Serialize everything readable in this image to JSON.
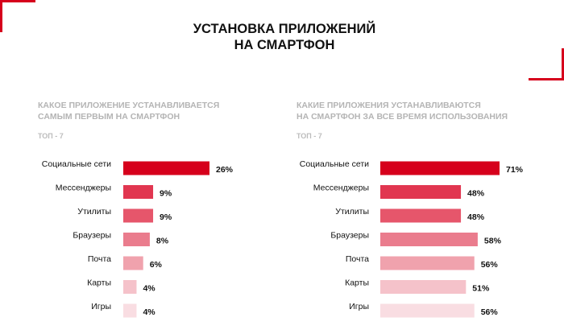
{
  "title": {
    "line1": "УСТАНОВКА ПРИЛОЖЕНИЙ",
    "line2": "НА СМАРТФОН"
  },
  "colors": {
    "accent": "#d6001c",
    "shades": [
      "#d6001c",
      "#e13650",
      "#e6566b",
      "#ea7c8d",
      "#f0a2ad",
      "#f5c2ca",
      "#f9dde2"
    ]
  },
  "chart_data": [
    {
      "type": "bar",
      "orientation": "horizontal",
      "title_line1": "КАКОЕ ПРИЛОЖЕНИЕ УСТАНАВЛИВАЕТСЯ",
      "title_line2": "САМЫМ ПЕРВЫМ НА СМАРТФОН",
      "subtitle": "ТОП - 7",
      "categories": [
        "Социальные сети",
        "Мессенджеры",
        "Утилиты",
        "Браузеры",
        "Почта",
        "Карты",
        "Игры"
      ],
      "values": [
        26,
        9,
        9,
        8,
        6,
        4,
        4
      ],
      "value_labels": [
        "26%",
        "9%",
        "9%",
        "8%",
        "6%",
        "4%",
        "4%"
      ],
      "unit": "%",
      "xlim": [
        0,
        26
      ]
    },
    {
      "type": "bar",
      "orientation": "horizontal",
      "title_line1": "КАКИЕ ПРИЛОЖЕНИЯ УСТАНАВЛИВАЮТСЯ",
      "title_line2": "НА СМАРТФОН ЗА ВСЕ ВРЕМЯ ИСПОЛЬЗОВАНИЯ",
      "subtitle": "ТОП - 7",
      "categories": [
        "Социальные сети",
        "Мессенджеры",
        "Утилиты",
        "Браузеры",
        "Почта",
        "Карты",
        "Игры"
      ],
      "values": [
        71,
        48,
        48,
        58,
        56,
        51,
        56
      ],
      "value_labels": [
        "71%",
        "48%",
        "48%",
        "58%",
        "56%",
        "51%",
        "56%"
      ],
      "unit": "%",
      "xlim": [
        0,
        71
      ]
    }
  ]
}
